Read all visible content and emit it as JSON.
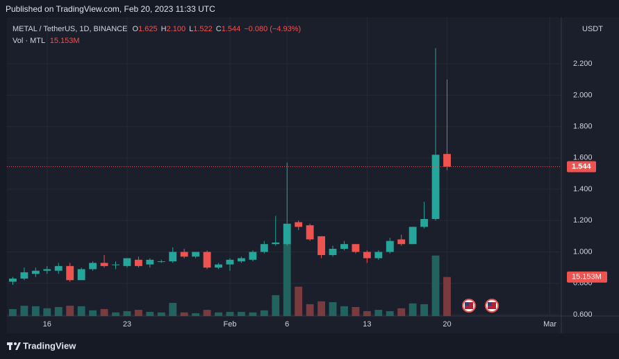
{
  "published": "Published on TradingView.com, Feb 20, 2023 11:33 UTC",
  "brand": "TradingView",
  "chart_data": {
    "type": "candlestick",
    "symbol": "METAL / TetherUS, 1D, BINANCE",
    "ohlc_legend": [
      {
        "key": "O",
        "value": "1.625"
      },
      {
        "key": "H",
        "value": "2.100"
      },
      {
        "key": "L",
        "value": "1.522"
      },
      {
        "key": "C",
        "value": "1.544"
      }
    ],
    "change_label": "−0.080 (−4.93%)",
    "volume_legend": "Vol · MTL",
    "volume_label": "15.153M",
    "currency": "USDT",
    "up_color": "#26a69a",
    "down_color": "#ef5350",
    "volume_up_color": "#22625f",
    "volume_down_color": "#7a3b3f",
    "grid": true,
    "x": [
      "2023-01-13",
      "2023-01-14",
      "2023-01-15",
      "2023-01-16",
      "2023-01-17",
      "2023-01-18",
      "2023-01-19",
      "2023-01-20",
      "2023-01-21",
      "2023-01-22",
      "2023-01-23",
      "2023-01-24",
      "2023-01-25",
      "2023-01-26",
      "2023-01-27",
      "2023-01-28",
      "2023-01-29",
      "2023-01-30",
      "2023-01-31",
      "2023-02-01",
      "2023-02-02",
      "2023-02-03",
      "2023-02-04",
      "2023-02-05",
      "2023-02-06",
      "2023-02-07",
      "2023-02-08",
      "2023-02-09",
      "2023-02-10",
      "2023-02-11",
      "2023-02-12",
      "2023-02-13",
      "2023-02-14",
      "2023-02-15",
      "2023-02-16",
      "2023-02-17",
      "2023-02-18",
      "2023-02-19",
      "2023-02-20"
    ],
    "open": [
      0.81,
      0.83,
      0.86,
      0.88,
      0.88,
      0.91,
      0.82,
      0.89,
      0.93,
      0.92,
      0.91,
      0.95,
      0.92,
      0.94,
      0.94,
      1.0,
      0.97,
      1.0,
      0.9,
      0.92,
      0.94,
      0.95,
      1.0,
      1.05,
      1.05,
      1.19,
      1.17,
      1.1,
      0.98,
      1.02,
      1.05,
      1.0,
      0.96,
      1.0,
      1.08,
      1.05,
      1.16,
      1.21,
      1.625
    ],
    "high": [
      0.84,
      0.9,
      0.9,
      0.91,
      0.93,
      0.93,
      0.9,
      0.94,
      0.98,
      0.94,
      0.96,
      0.97,
      0.96,
      0.95,
      1.03,
      1.02,
      1.0,
      1.01,
      0.93,
      0.96,
      0.97,
      1.01,
      1.07,
      1.23,
      1.57,
      1.2,
      1.18,
      1.1,
      1.04,
      1.07,
      1.05,
      1.01,
      1.01,
      1.09,
      1.11,
      1.16,
      1.32,
      2.3,
      2.1
    ],
    "low": [
      0.79,
      0.82,
      0.84,
      0.86,
      0.86,
      0.81,
      0.82,
      0.88,
      0.9,
      0.89,
      0.9,
      0.9,
      0.9,
      0.93,
      0.93,
      0.96,
      0.96,
      0.89,
      0.89,
      0.88,
      0.93,
      0.94,
      0.99,
      1.04,
      1.04,
      1.14,
      1.07,
      0.96,
      0.97,
      1.01,
      0.99,
      0.93,
      0.95,
      0.99,
      1.04,
      1.05,
      1.15,
      1.2,
      1.522
    ],
    "close": [
      0.83,
      0.87,
      0.88,
      0.89,
      0.91,
      0.82,
      0.89,
      0.93,
      0.91,
      0.92,
      0.96,
      0.91,
      0.95,
      0.94,
      1.0,
      0.97,
      1.0,
      0.9,
      0.92,
      0.95,
      0.96,
      1.0,
      1.05,
      1.06,
      1.18,
      1.16,
      1.08,
      0.98,
      1.02,
      1.05,
      1.0,
      0.96,
      1.0,
      1.07,
      1.05,
      1.16,
      1.21,
      1.62,
      1.544
    ],
    "volume": [
      2.7,
      4.0,
      3.8,
      3.0,
      3.5,
      4.0,
      3.8,
      2.2,
      2.7,
      1.4,
      1.9,
      2.4,
      1.6,
      1.4,
      5.1,
      1.4,
      1.1,
      2.4,
      1.4,
      1.6,
      1.6,
      1.4,
      2.2,
      8.1,
      28,
      11.4,
      4.6,
      5.7,
      5.4,
      3.8,
      3.5,
      1.9,
      2.4,
      1.9,
      3.0,
      4.9,
      4.6,
      23.5,
      15.153
    ],
    "xlim": [
      "2023-01-12",
      "2023-03-02"
    ],
    "xticks": [
      {
        "value": "2023-01-16",
        "label": "16"
      },
      {
        "value": "2023-01-23",
        "label": "23"
      },
      {
        "value": "2023-02-01",
        "label": "Feb"
      },
      {
        "value": "2023-02-06",
        "label": "6"
      },
      {
        "value": "2023-02-13",
        "label": "13"
      },
      {
        "value": "2023-02-20",
        "label": "20"
      },
      {
        "value": "2023-03-01",
        "label": "Mar"
      }
    ],
    "ylim": [
      0.591,
      2.497
    ],
    "yticks": [
      {
        "value": 0.6,
        "label": "0.600"
      },
      {
        "value": 0.8,
        "label": "0.800"
      },
      {
        "value": 1.0,
        "label": "1.000"
      },
      {
        "value": 1.2,
        "label": "1.200"
      },
      {
        "value": 1.4,
        "label": "1.400"
      },
      {
        "value": 1.6,
        "label": "1.600"
      },
      {
        "value": 1.8,
        "label": "1.800"
      },
      {
        "value": 2.0,
        "label": "2.000"
      },
      {
        "value": 2.2,
        "label": "2.200"
      }
    ],
    "volume_ylim": [
      0,
      116
    ]
  }
}
